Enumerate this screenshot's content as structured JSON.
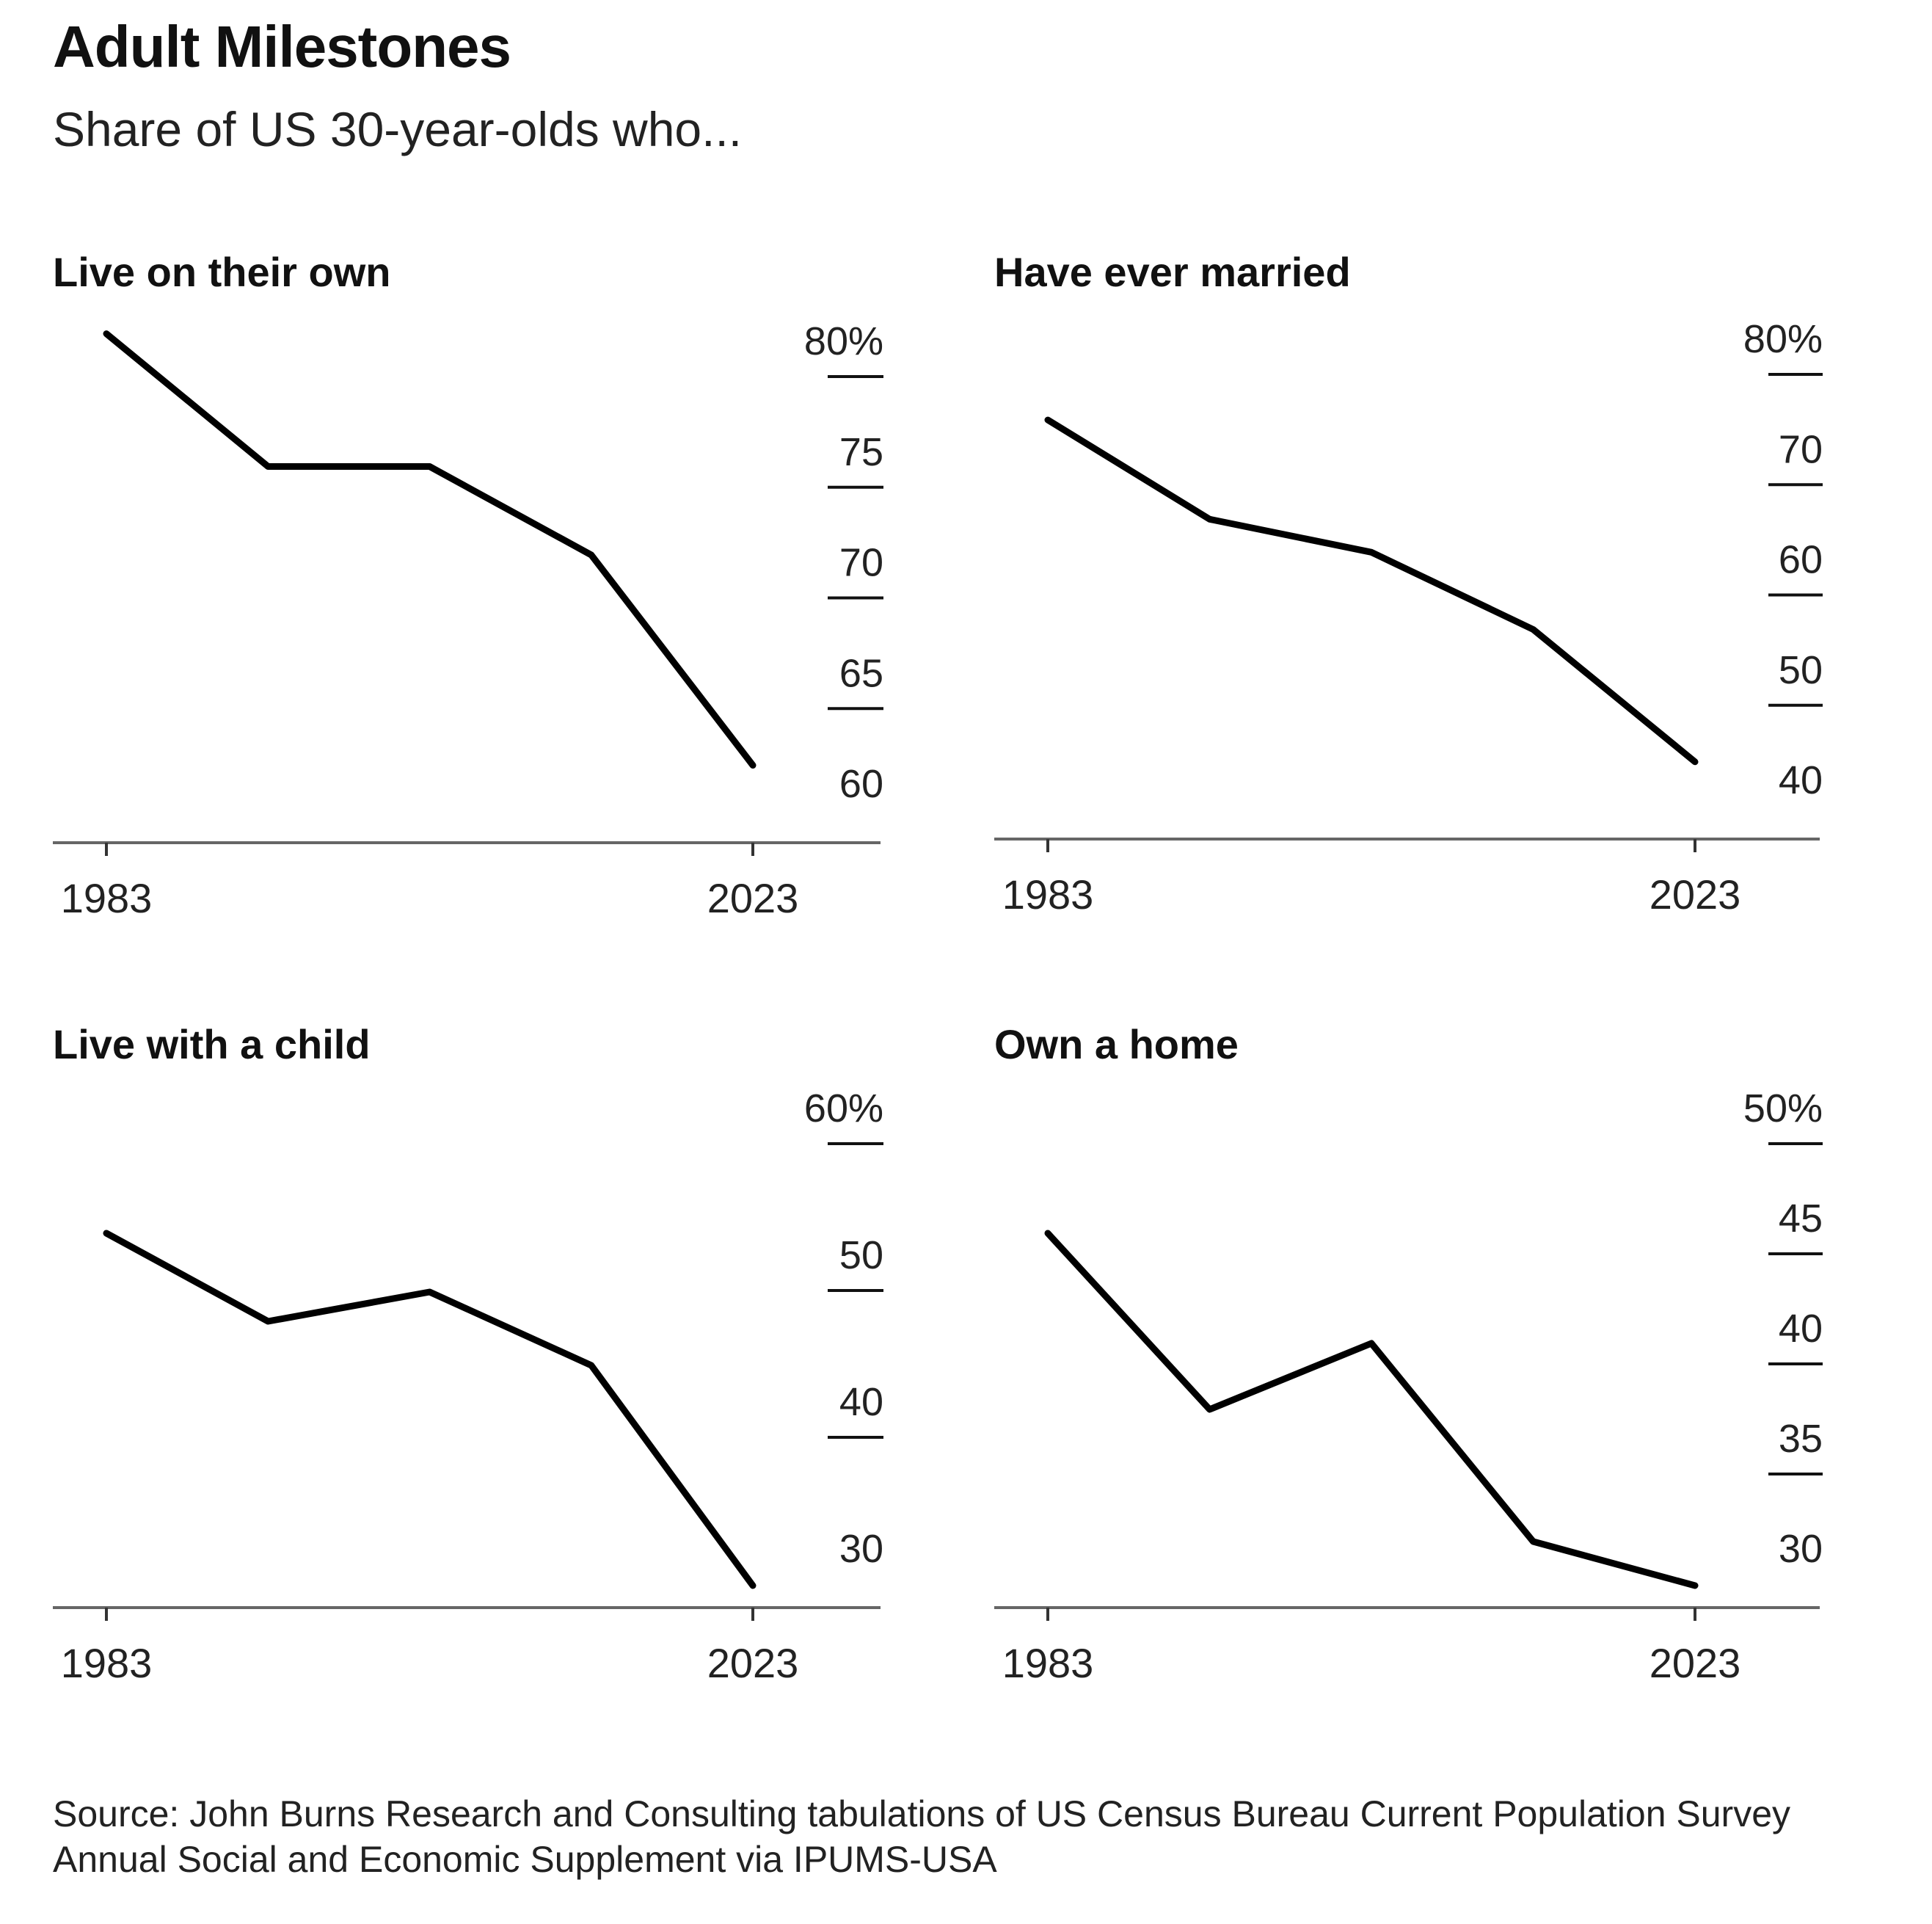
{
  "title": "Adult Milestones",
  "subtitle": "Share of US 30-year-olds who...",
  "source": "Source: John Burns Research and Consulting tabulations of US Census Bureau Current Population Survey Annual Social and Economic Supplement via IPUMS-USA",
  "colors": {
    "line": "#000000",
    "axis": "#666666",
    "text": "#222222"
  },
  "chart_data": [
    {
      "type": "line",
      "title": "Live on their own",
      "x": [
        1983,
        1993,
        2003,
        2013,
        2023
      ],
      "x_tick_labels": [
        "1983",
        "2023"
      ],
      "series": [
        {
          "values": [
            83,
            77,
            77,
            73,
            63.5
          ]
        }
      ],
      "ylim": [
        60,
        80
      ],
      "y_ticks": [
        60,
        65,
        70,
        75,
        80
      ],
      "y_tick_labels": [
        "60",
        "65",
        "70",
        "75",
        "80%"
      ],
      "ylabel": "",
      "xlabel": "",
      "grid": false
    },
    {
      "type": "line",
      "title": "Have ever married",
      "x": [
        1983,
        1993,
        2003,
        2013,
        2023
      ],
      "x_tick_labels": [
        "1983",
        "2023"
      ],
      "series": [
        {
          "values": [
            78,
            69,
            66,
            59,
            47
          ]
        }
      ],
      "ylim": [
        40,
        80
      ],
      "y_ticks": [
        40,
        50,
        60,
        70,
        80
      ],
      "y_tick_labels": [
        "40",
        "50",
        "60",
        "70",
        "80%"
      ],
      "ylabel": "",
      "xlabel": "",
      "grid": false
    },
    {
      "type": "line",
      "title": "Live with a child",
      "x": [
        1983,
        1993,
        2003,
        2013,
        2023
      ],
      "x_tick_labels": [
        "1983",
        "2023"
      ],
      "series": [
        {
          "values": [
            55.5,
            49.5,
            51.5,
            46.5,
            31.5
          ]
        }
      ],
      "ylim": [
        30,
        60
      ],
      "y_ticks": [
        30,
        40,
        50,
        60
      ],
      "y_tick_labels": [
        "30",
        "40",
        "50",
        "60%"
      ],
      "ylabel": "",
      "xlabel": "",
      "grid": false
    },
    {
      "type": "line",
      "title": "Own a home",
      "x": [
        1983,
        1993,
        2003,
        2013,
        2023
      ],
      "x_tick_labels": [
        "1983",
        "2023"
      ],
      "series": [
        {
          "values": [
            47,
            39,
            42,
            33,
            31
          ]
        }
      ],
      "ylim": [
        30,
        50
      ],
      "y_ticks": [
        30,
        35,
        40,
        45,
        50
      ],
      "y_tick_labels": [
        "30",
        "35",
        "40",
        "45",
        "50%"
      ],
      "ylabel": "",
      "xlabel": "",
      "grid": false
    }
  ]
}
